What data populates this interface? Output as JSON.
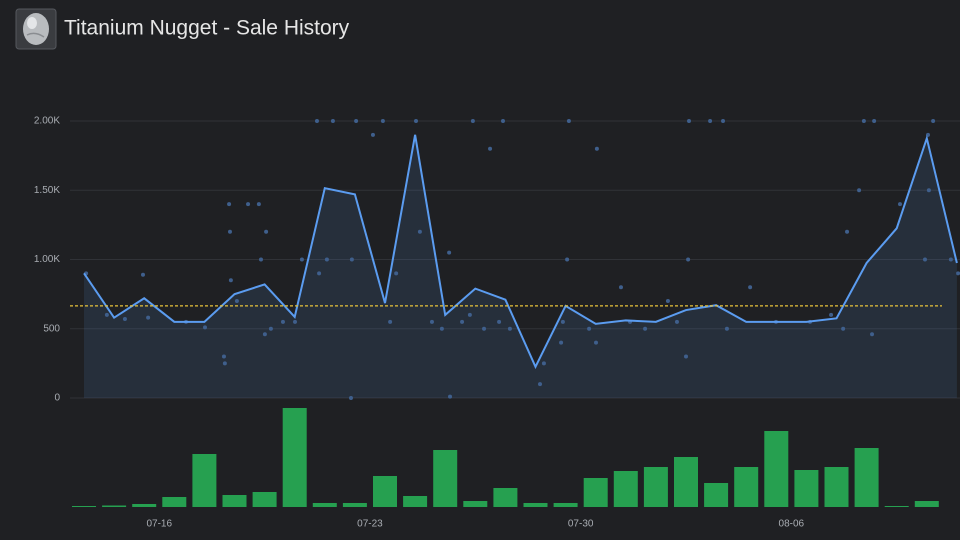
{
  "chart_data": {
    "type": "line",
    "title": "Titanium Nugget - Sale History",
    "categories": [
      null,
      null,
      null,
      "07-16",
      null,
      null,
      null,
      null,
      null,
      null,
      "07-23",
      null,
      null,
      null,
      null,
      null,
      null,
      "07-30",
      null,
      null,
      null,
      null,
      null,
      null,
      "08-06",
      null,
      null,
      null,
      null,
      null
    ],
    "values": [
      900,
      580,
      720,
      550,
      550,
      750,
      820,
      585,
      1515,
      1470,
      685,
      1900,
      600,
      790,
      710,
      225,
      665,
      535,
      560,
      550,
      635,
      670,
      550,
      550,
      550,
      575,
      975,
      1225,
      1875,
      975
    ],
    "color": "#5b9cf0",
    "average": {
      "value": 665,
      "color": "#e8c33a"
    },
    "sales": {
      "color": "#3f5f8c",
      "x": [
        0.07,
        0.76,
        1.36,
        1.96,
        2.13,
        3.39,
        4.02,
        4.65,
        4.68,
        4.85,
        4.82,
        4.88,
        5.08,
        5.45,
        5.81,
        5.88,
        6.05,
        6.01,
        6.21,
        6.61,
        7.01,
        7.24,
        7.74,
        7.81,
        8.07,
        8.27,
        8.87,
        8.9,
        9.04,
        9.6,
        9.93,
        10.17,
        10.37,
        11.03,
        11.16,
        11.56,
        11.89,
        12.13,
        12.16,
        12.56,
        12.82,
        12.92,
        13.29,
        13.49,
        13.79,
        13.92,
        14.15,
        15.15,
        15.28,
        15.85,
        15.91,
        16.05,
        16.11,
        16.78,
        17.01,
        17.04,
        17.84,
        18.14,
        18.64,
        19.4,
        19.7,
        20.0,
        20.07,
        20.1,
        20.8,
        21.23,
        21.36,
        22.13,
        22.99,
        24.12,
        24.82,
        25.22,
        25.35,
        25.75,
        25.91,
        26.18,
        26.25,
        27.11,
        27.94,
        28.04,
        28.07,
        28.21,
        28.8,
        29.04
      ],
      "values": [
        900,
        600,
        570,
        890,
        580,
        550,
        510,
        300,
        250,
        1200,
        1400,
        850,
        700,
        1400,
        1400,
        1000,
        1200,
        460,
        500,
        550,
        550,
        1000,
        2000,
        900,
        1000,
        2000,
        0,
        1000,
        2000,
        1900,
        2000,
        550,
        900,
        2000,
        1200,
        550,
        500,
        1050,
        10,
        550,
        600,
        2000,
        500,
        1800,
        550,
        2000,
        500,
        100,
        250,
        400,
        550,
        1000,
        2000,
        500,
        400,
        1800,
        800,
        550,
        500,
        700,
        550,
        300,
        1000,
        2000,
        2000,
        2000,
        500,
        800,
        550,
        550,
        600,
        500,
        1200,
        1500,
        2000,
        460,
        2000,
        1400,
        1000,
        1900,
        1500,
        2000,
        1000,
        900
      ]
    },
    "volume": {
      "color": "#26a050",
      "values": [
        1,
        1.5,
        3,
        10,
        53,
        12,
        15,
        99,
        4,
        4,
        31,
        11,
        57,
        6,
        19,
        4,
        4,
        29,
        36,
        40,
        50,
        24,
        40,
        76,
        37,
        40,
        59,
        1,
        6,
        null
      ]
    },
    "ylim": [
      0,
      2000
    ],
    "yticks": [
      0,
      500,
      {
        "value": 1000,
        "label": "1.00K"
      },
      {
        "value": 1500,
        "label": "1.50K"
      },
      {
        "value": 2000,
        "label": "2.00K"
      }
    ],
    "grid": true
  }
}
